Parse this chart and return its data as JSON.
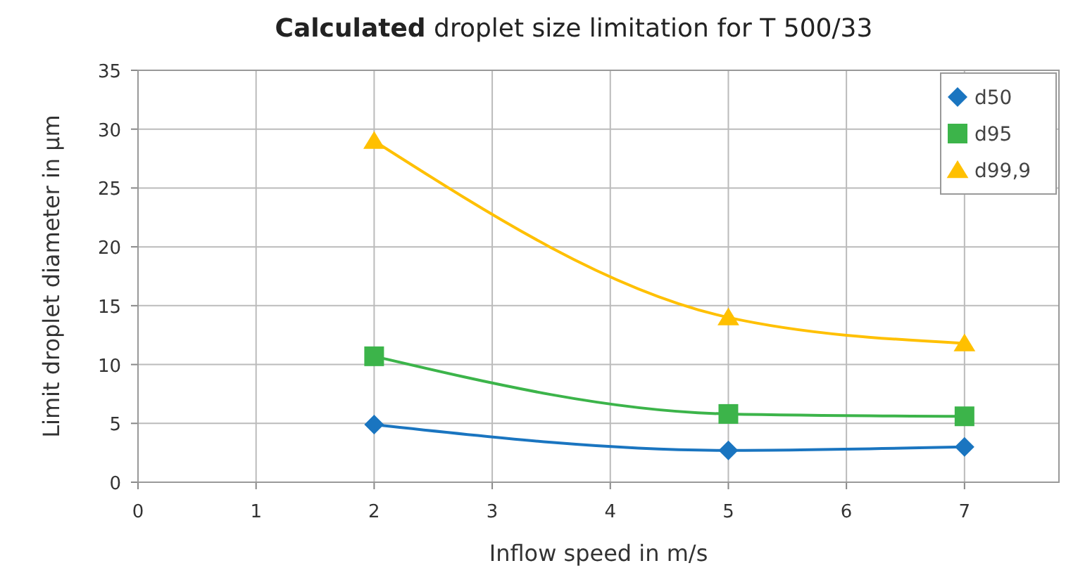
{
  "chart_data": {
    "type": "line",
    "title": "Calculated droplet size limitation for T 500/33",
    "xlabel": "Inflow speed in m/s",
    "ylabel": "Limit droplet diameter in µm",
    "x": [
      2,
      5,
      7
    ],
    "series": [
      {
        "name": "d50",
        "color": "#1a75c0",
        "marker": "diamond",
        "values": [
          4.9,
          2.7,
          3.0
        ]
      },
      {
        "name": "d95",
        "color": "#3cb44a",
        "marker": "square",
        "values": [
          10.7,
          5.8,
          5.6
        ]
      },
      {
        "name": "d99,9",
        "color": "#ffc000",
        "marker": "triangle",
        "values": [
          29,
          14,
          11.8
        ]
      }
    ],
    "xlim": [
      0,
      7.8
    ],
    "xticks": [
      0,
      1,
      2,
      3,
      4,
      5,
      6,
      7
    ],
    "ylim": [
      0,
      35
    ],
    "yticks": [
      0,
      5,
      10,
      15,
      20,
      25,
      30,
      35
    ],
    "grid": true,
    "legend": "top right"
  }
}
